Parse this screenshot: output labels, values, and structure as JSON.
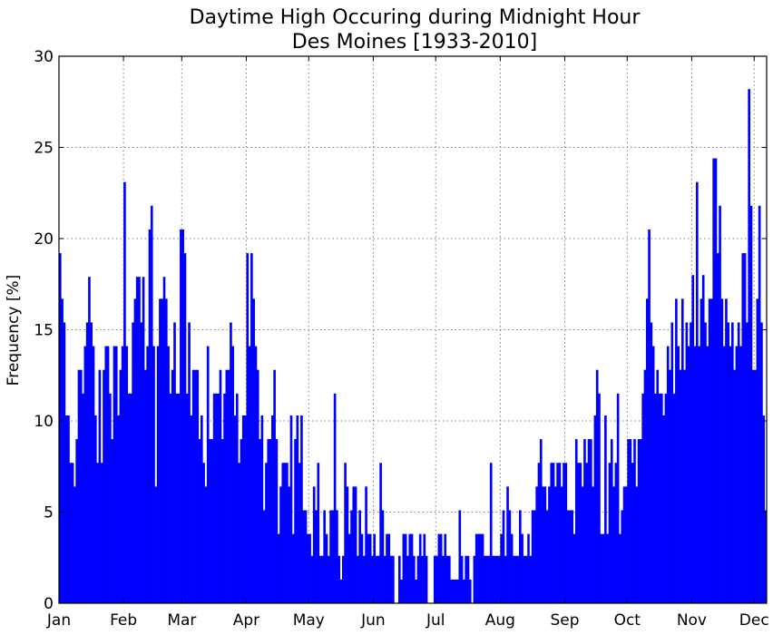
{
  "chart_data": {
    "type": "bar",
    "title": "Daytime High Occuring during Midnight Hour",
    "subtitle": "Des Moines [1933-2010]",
    "xlabel": "",
    "ylabel": "Frequency [%]",
    "ylim": [
      0,
      30
    ],
    "yticks": [
      "0",
      "5",
      "10",
      "15",
      "20",
      "25",
      "30"
    ],
    "month_labels": [
      "Jan",
      "Feb",
      "Mar",
      "Apr",
      "May",
      "Jun",
      "Jul",
      "Aug",
      "Sep",
      "Oct",
      "Nov",
      "Dec"
    ],
    "grid": true,
    "bar_color": "#0000ff",
    "x_unit": "day of year",
    "values": [
      19.2,
      16.7,
      15.4,
      10.3,
      10.3,
      7.7,
      7.7,
      6.4,
      9.0,
      12.8,
      12.8,
      11.5,
      14.1,
      15.4,
      17.9,
      15.4,
      14.1,
      10.3,
      7.7,
      12.8,
      7.7,
      12.8,
      14.1,
      14.1,
      11.5,
      9.0,
      14.1,
      14.1,
      10.3,
      12.8,
      14.1,
      23.1,
      14.1,
      11.5,
      11.5,
      15.4,
      16.7,
      17.9,
      17.9,
      15.4,
      17.9,
      12.8,
      14.1,
      20.5,
      21.8,
      14.1,
      6.4,
      14.1,
      16.7,
      16.7,
      17.9,
      16.7,
      14.1,
      11.5,
      12.8,
      15.4,
      11.5,
      11.5,
      20.5,
      20.5,
      19.2,
      11.5,
      15.4,
      10.3,
      12.8,
      12.8,
      12.8,
      9.0,
      10.3,
      7.7,
      6.4,
      14.1,
      9.0,
      9.0,
      11.5,
      11.5,
      11.5,
      12.8,
      9.0,
      11.5,
      12.8,
      12.8,
      15.4,
      14.1,
      10.3,
      11.5,
      7.7,
      9.0,
      10.3,
      10.3,
      19.2,
      14.1,
      19.2,
      16.7,
      14.1,
      12.8,
      9.0,
      10.3,
      5.1,
      7.7,
      9.0,
      9.0,
      10.3,
      12.8,
      9.0,
      3.8,
      6.4,
      7.7,
      7.7,
      7.7,
      6.4,
      10.3,
      3.8,
      9.0,
      10.3,
      7.7,
      10.3,
      5.1,
      5.1,
      3.8,
      3.8,
      2.6,
      6.4,
      5.1,
      7.7,
      2.6,
      2.6,
      5.1,
      3.8,
      2.6,
      5.1,
      5.1,
      11.5,
      5.1,
      2.6,
      1.3,
      2.6,
      7.7,
      6.4,
      3.8,
      5.1,
      6.4,
      6.4,
      2.6,
      5.1,
      3.8,
      2.6,
      6.4,
      3.8,
      3.8,
      2.6,
      3.8,
      2.6,
      2.6,
      7.7,
      5.1,
      2.6,
      3.8,
      3.8,
      2.6,
      2.6,
      0.0,
      0.0,
      2.6,
      1.3,
      3.8,
      3.8,
      2.6,
      3.8,
      3.8,
      2.6,
      1.3,
      2.6,
      3.8,
      2.6,
      3.8,
      2.6,
      0.0,
      0.0,
      0.0,
      2.6,
      2.6,
      3.8,
      3.8,
      2.6,
      3.8,
      2.6,
      2.6,
      1.3,
      1.3,
      1.3,
      1.3,
      5.1,
      2.6,
      1.3,
      2.6,
      2.6,
      1.3,
      0.0,
      2.6,
      3.8,
      3.8,
      3.8,
      3.8,
      2.6,
      2.6,
      2.6,
      7.7,
      2.6,
      2.6,
      2.6,
      2.6,
      3.8,
      5.1,
      2.6,
      6.4,
      5.1,
      3.8,
      2.6,
      2.6,
      2.6,
      5.1,
      3.8,
      2.6,
      2.6,
      3.8,
      2.6,
      5.1,
      5.1,
      6.4,
      7.7,
      9.0,
      6.4,
      6.4,
      5.1,
      6.4,
      7.7,
      7.7,
      6.4,
      7.7,
      7.7,
      6.4,
      7.7,
      7.7,
      5.1,
      5.1,
      5.1,
      3.8,
      9.0,
      7.7,
      7.7,
      6.4,
      9.0,
      7.7,
      9.0,
      9.0,
      6.4,
      10.3,
      12.8,
      11.5,
      3.8,
      3.8,
      10.3,
      3.8,
      7.7,
      9.0,
      6.4,
      7.7,
      11.5,
      3.8,
      5.1,
      6.4,
      6.4,
      9.0,
      9.0,
      7.7,
      9.0,
      6.4,
      9.0,
      9.0,
      11.5,
      12.8,
      16.7,
      20.5,
      15.4,
      14.1,
      11.5,
      12.8,
      11.5,
      11.5,
      10.3,
      11.5,
      14.1,
      12.8,
      15.4,
      11.5,
      16.7,
      14.1,
      12.8,
      16.7,
      12.8,
      15.4,
      14.1,
      15.4,
      18.0,
      14.1,
      23.1,
      14.1,
      16.7,
      18.0,
      15.4,
      14.1,
      16.7,
      16.7,
      24.4,
      24.4,
      19.2,
      21.8,
      16.7,
      14.1,
      16.7,
      15.4,
      14.1,
      15.4,
      12.8,
      14.1,
      15.4,
      14.1,
      19.2,
      19.2,
      15.4,
      28.2,
      21.8,
      12.8,
      12.8,
      16.7,
      21.8,
      15.4,
      10.3,
      5.1
    ]
  }
}
